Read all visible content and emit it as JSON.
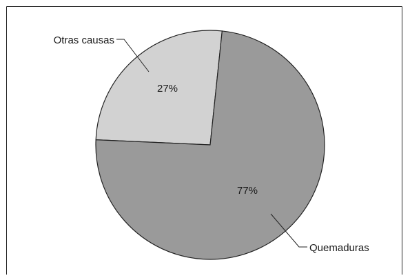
{
  "chart_data": {
    "type": "pie",
    "title": "",
    "slices": [
      {
        "label": "Otras causas",
        "value": 27,
        "value_label": "27%",
        "color": "#d2d2d2"
      },
      {
        "label": "Quemaduras",
        "value": 77,
        "value_label": "77%",
        "color": "#9a9a9a"
      }
    ],
    "legend": "callouts"
  }
}
